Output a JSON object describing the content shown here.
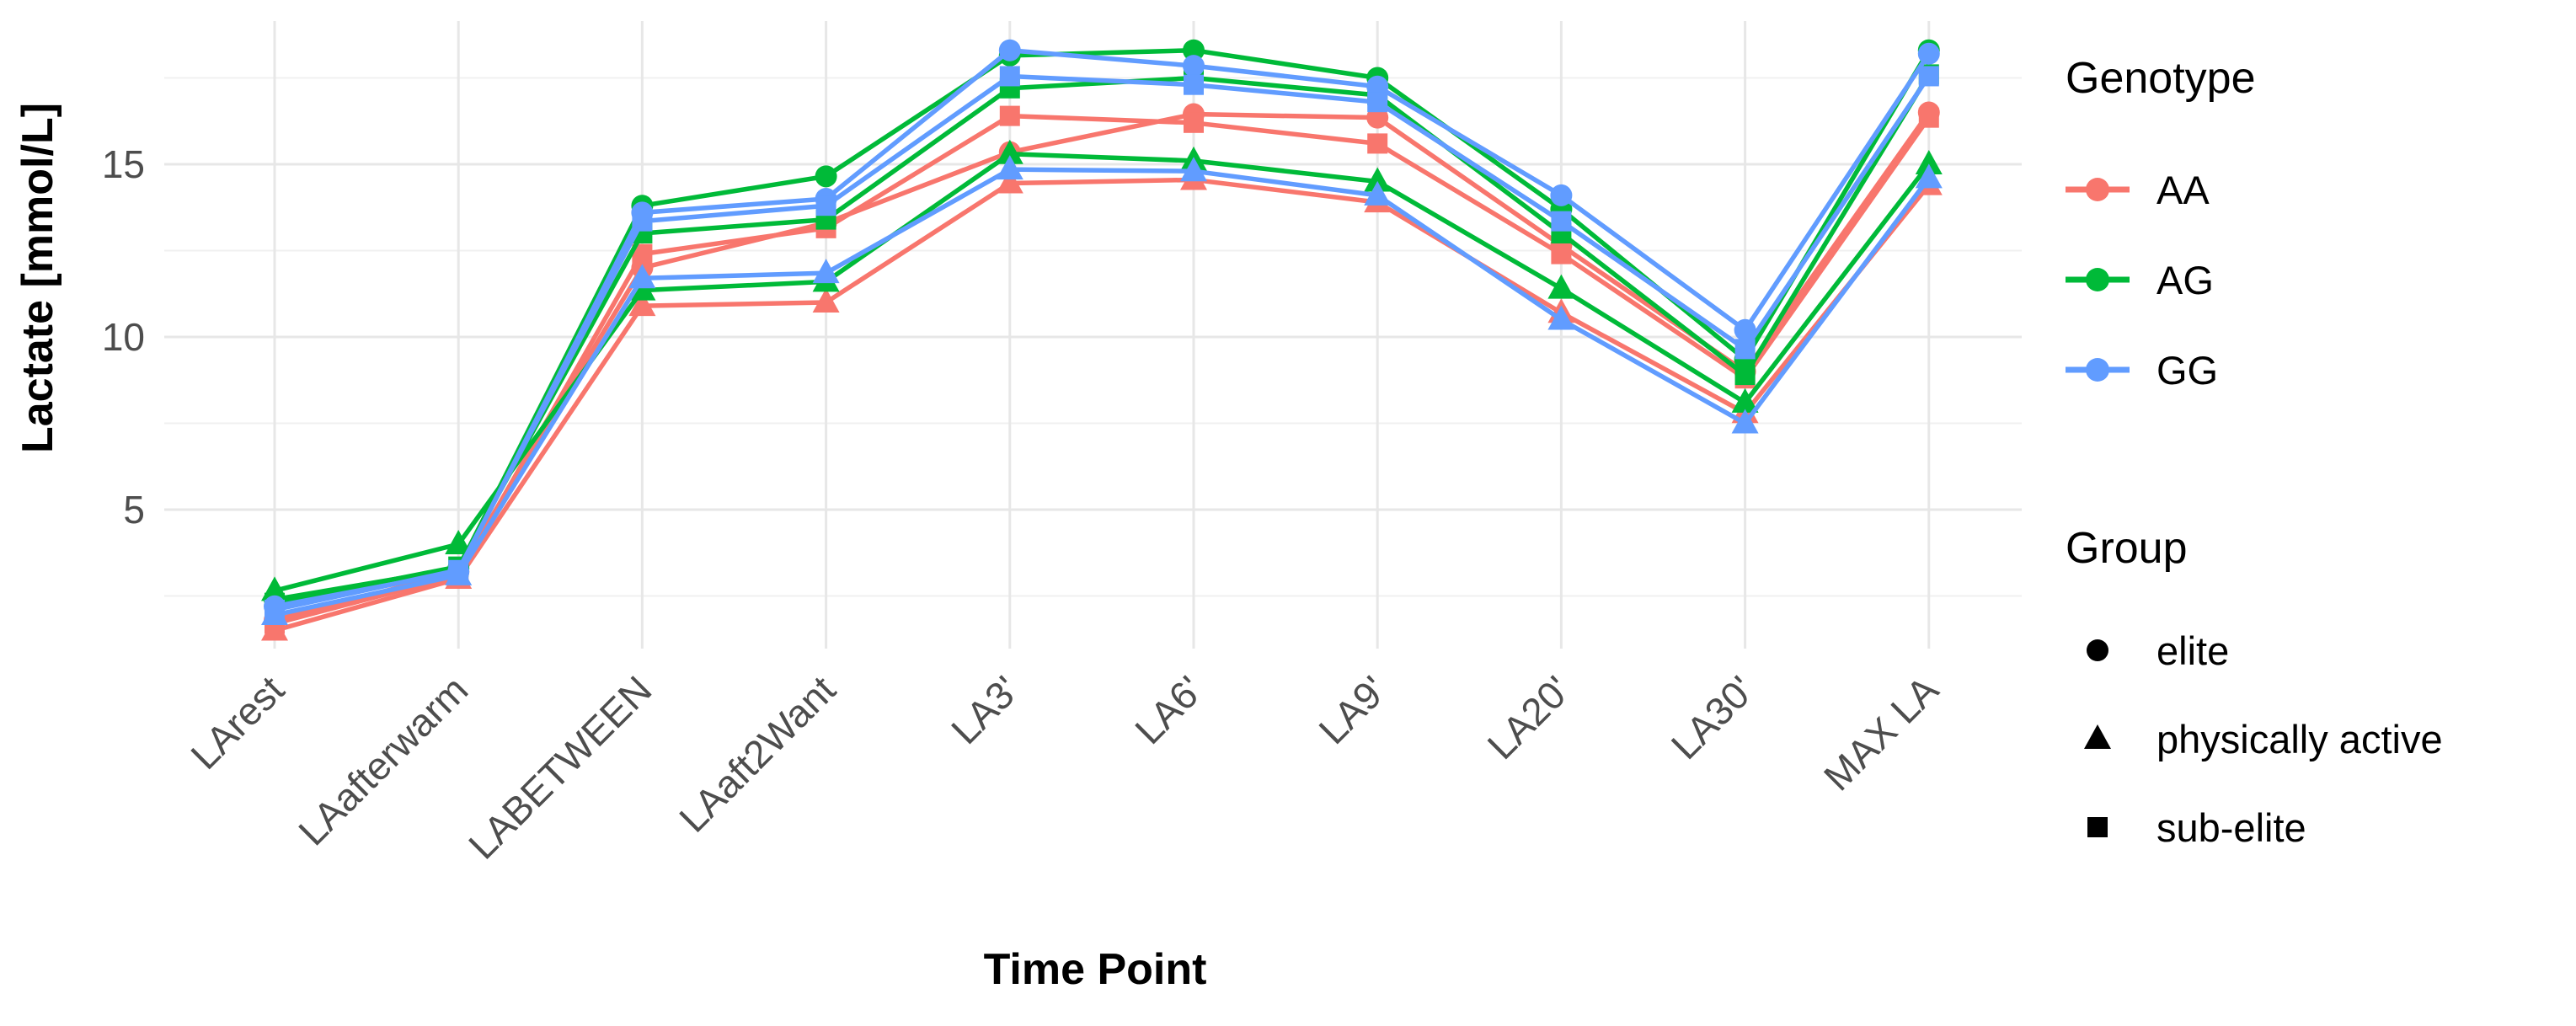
{
  "chart_data": {
    "type": "line",
    "title": "",
    "xlabel": "Time Point",
    "ylabel": "Lactate [mmol/L]",
    "categories": [
      "LArest",
      "LAafterwarm",
      "LABETWEEN",
      "LAaft2Want",
      "LA3'",
      "LA6'",
      "LA9'",
      "LA20'",
      "LA30'",
      "MAX LA"
    ],
    "y_ticks": [
      5,
      10,
      15
    ],
    "y_minor_ticks": [
      2.5,
      7.5,
      12.5,
      17.5
    ],
    "ylim": [
      0.9,
      19.2
    ],
    "grid": "major+minor, light grey on white",
    "legend_position": "right",
    "colors": {
      "AA": "#F8766D",
      "AG": "#00BA38",
      "GG": "#619CFF",
      "tick_text": "#4d4d4d",
      "grid": "#e7e7e7"
    },
    "legend": {
      "genotype_title": "Genotype",
      "genotypes": [
        {
          "label": "AA",
          "color": "#F8766D"
        },
        {
          "label": "AG",
          "color": "#00BA38"
        },
        {
          "label": "GG",
          "color": "#619CFF"
        }
      ],
      "group_title": "Group",
      "groups": [
        {
          "label": "elite",
          "shape": "circle"
        },
        {
          "label": "physically active",
          "shape": "triangle"
        },
        {
          "label": "sub-elite",
          "shape": "square"
        }
      ]
    },
    "series": [
      {
        "genotype": "AA",
        "group": "elite",
        "shape": "circle",
        "color": "#F8766D",
        "values": [
          1.8,
          3.2,
          12.0,
          13.3,
          15.35,
          16.45,
          16.35,
          12.65,
          9.0,
          16.5
        ]
      },
      {
        "genotype": "AA",
        "group": "sub-elite",
        "shape": "square",
        "color": "#F8766D",
        "values": [
          1.7,
          3.1,
          12.4,
          13.15,
          16.4,
          16.2,
          15.6,
          12.4,
          8.8,
          16.35
        ]
      },
      {
        "genotype": "AA",
        "group": "physically active",
        "shape": "triangle",
        "color": "#F8766D",
        "values": [
          1.5,
          3.0,
          10.9,
          11.0,
          14.45,
          14.55,
          13.9,
          10.7,
          7.8,
          14.4
        ]
      },
      {
        "genotype": "AG",
        "group": "elite",
        "shape": "circle",
        "color": "#00BA38",
        "values": [
          2.4,
          3.3,
          13.8,
          14.65,
          18.15,
          18.3,
          17.5,
          13.7,
          9.35,
          18.3
        ]
      },
      {
        "genotype": "AG",
        "group": "sub-elite",
        "shape": "square",
        "color": "#00BA38",
        "values": [
          2.3,
          3.35,
          13.0,
          13.4,
          17.2,
          17.5,
          17.0,
          13.0,
          8.9,
          17.6
        ]
      },
      {
        "genotype": "AG",
        "group": "physically active",
        "shape": "triangle",
        "color": "#00BA38",
        "values": [
          2.65,
          4.0,
          11.35,
          11.6,
          15.3,
          15.1,
          14.5,
          11.4,
          8.1,
          15.0
        ]
      },
      {
        "genotype": "GG",
        "group": "elite",
        "shape": "circle",
        "color": "#619CFF",
        "values": [
          2.2,
          3.2,
          13.6,
          14.0,
          18.3,
          17.85,
          17.25,
          14.1,
          10.2,
          18.2
        ]
      },
      {
        "genotype": "GG",
        "group": "sub-elite",
        "shape": "square",
        "color": "#619CFF",
        "values": [
          2.1,
          3.25,
          13.35,
          13.8,
          17.55,
          17.3,
          16.8,
          13.35,
          9.65,
          17.55
        ]
      },
      {
        "genotype": "GG",
        "group": "physically active",
        "shape": "triangle",
        "color": "#619CFF",
        "values": [
          1.95,
          3.1,
          11.7,
          11.85,
          14.85,
          14.8,
          14.1,
          10.5,
          7.5,
          14.6
        ]
      }
    ]
  }
}
